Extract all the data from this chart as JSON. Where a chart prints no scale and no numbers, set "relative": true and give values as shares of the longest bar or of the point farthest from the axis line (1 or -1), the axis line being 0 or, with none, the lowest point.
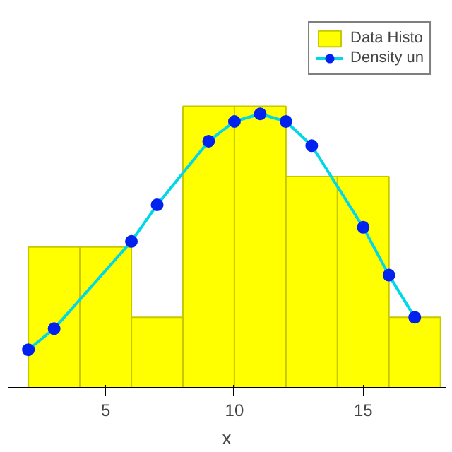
{
  "chart_data": {
    "type": "histogram",
    "relative": true,
    "xlabel": "x",
    "xlim": [
      1.2,
      18.2
    ],
    "xticks": [
      5,
      10,
      15
    ],
    "bins": [
      2,
      4,
      6,
      8,
      10,
      12,
      14,
      16,
      18
    ],
    "legend": "top right",
    "grid": false,
    "series": [
      {
        "name": "Data Histo",
        "color": "#ffff00",
        "values": [
          0.5,
          0.5,
          0.25,
          1,
          1,
          0.75,
          0.75,
          0.25
        ]
      },
      {
        "name": "Density un",
        "type": "line",
        "color": "#00d8e8",
        "marker": "circle",
        "x": [
          2,
          3,
          6,
          7,
          9,
          10,
          11,
          12,
          13,
          15,
          16,
          17
        ],
        "values": [
          0.135,
          0.21,
          0.52,
          0.65,
          0.876,
          0.946,
          0.973,
          0.946,
          0.86,
          0.57,
          0.4,
          0.25
        ]
      }
    ]
  }
}
